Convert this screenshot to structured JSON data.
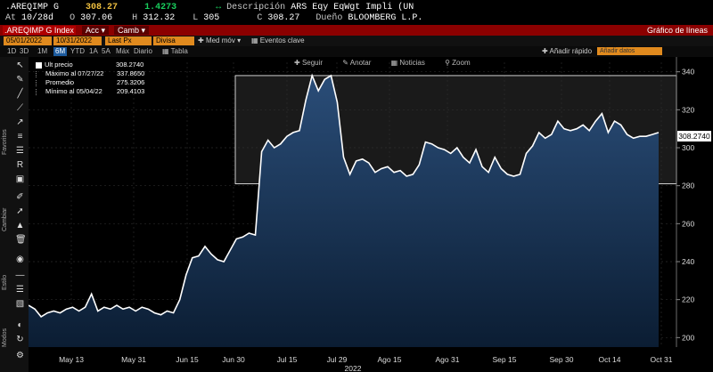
{
  "header": {
    "ticker": ".AREQIMP G",
    "last": "308.27",
    "change": "1.4273",
    "desc_label": "Descripción",
    "desc_value": "ARS Eqy EqWgt Impli (UN",
    "at_label": "At",
    "at_date": "10/28d",
    "o_label": "O",
    "o_value": "307.06",
    "h_label": "H",
    "h_value": "312.32",
    "l_label": "L",
    "l_value": "305",
    "c_label": "C",
    "c_value": "308.27",
    "owner_label": "Dueño",
    "owner_value": "BLOOMBERG L.P."
  },
  "redbar": {
    "index_field": ".AREQIMP G Index",
    "acc_btn": "Acc",
    "camb_btn": "Camb",
    "title": "Gráfico de líneas"
  },
  "row2": {
    "date_from": "05/01/2022",
    "date_to": "10/31/2022",
    "field": "Last Px",
    "field2": "Divisa local",
    "med_mov": "Med móv",
    "eventos": "Eventos clave"
  },
  "periods": [
    "1D",
    "3D",
    "1M",
    "6M",
    "YTD",
    "1A",
    "5A",
    "Máx",
    "Diario"
  ],
  "active_period": "6M",
  "tabla": "Tabla",
  "add_fast": "Añadir rápido",
  "search_placeholder": "Añadir datos",
  "sidebar_labels": [
    "Favoritos",
    "Cambiar",
    "Estilo",
    "Modos"
  ],
  "legend": [
    {
      "name": "Ult precio",
      "value": "308.2740"
    },
    {
      "name": "Máximo al 07/27/22",
      "value": "337.8650"
    },
    {
      "name": "Promedio",
      "value": "275.3206"
    },
    {
      "name": "Mínimo al 05/04/22",
      "value": "209.4103"
    }
  ],
  "chart_tools": [
    "Seguir",
    "Anotar",
    "Noticias",
    "Zoom"
  ],
  "last_label": "308.2740",
  "chart_data": {
    "type": "area",
    "xlabel": "",
    "ylabel": "",
    "x_ticks": [
      "May 13",
      "May 31",
      "Jun 15",
      "Jun 30",
      "Jul 15",
      "Jul 29",
      "Ago 15",
      "Ago 31",
      "Sep 15",
      "Sep 30",
      "Oct 14",
      "Oct 31"
    ],
    "year_label": "2022",
    "ylim": [
      195,
      345
    ],
    "y_ticks": [
      200,
      220,
      240,
      260,
      280,
      300,
      320,
      340
    ],
    "highlight_band": [
      281,
      338
    ],
    "values": [
      217,
      215,
      211,
      213,
      214,
      213,
      215,
      216,
      214,
      216,
      223,
      214,
      216,
      215,
      217,
      215,
      216,
      214,
      216,
      215,
      213,
      212,
      214,
      213,
      220,
      233,
      242,
      243,
      248,
      244,
      241,
      240,
      246,
      252,
      253,
      255,
      254,
      298,
      304,
      300,
      302,
      306,
      308,
      309,
      325,
      338,
      330,
      336,
      338,
      324,
      295,
      286,
      293,
      294,
      292,
      287,
      289,
      290,
      287,
      288,
      285,
      286,
      291,
      303,
      302,
      300,
      299,
      297,
      300,
      295,
      292,
      299,
      290,
      287,
      295,
      289,
      286,
      285,
      286,
      297,
      301,
      308,
      305,
      307,
      314,
      310,
      309,
      310,
      312,
      309,
      314,
      318,
      308,
      314,
      312,
      307,
      305,
      306,
      306,
      307,
      308
    ]
  }
}
